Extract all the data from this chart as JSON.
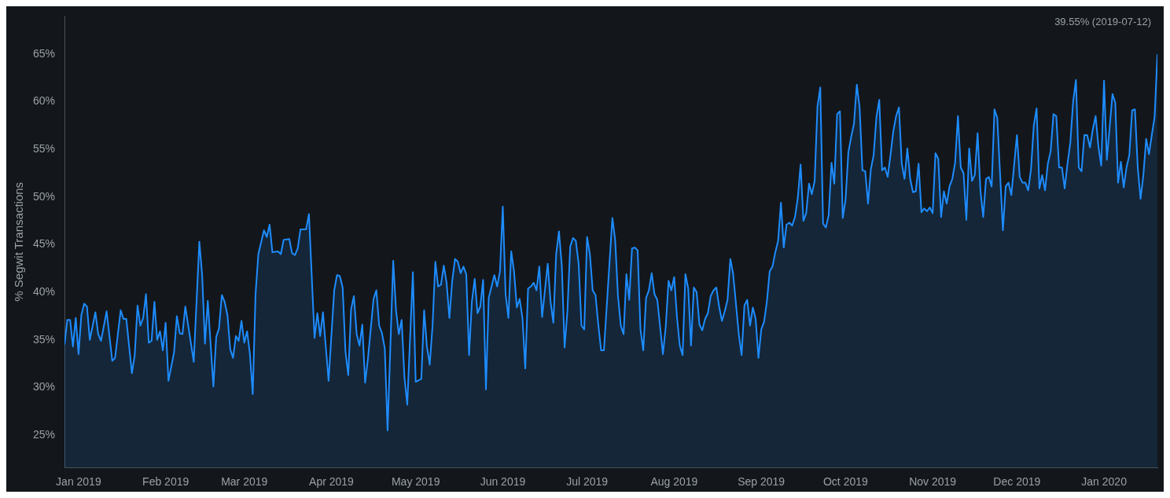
{
  "chart_data": {
    "type": "area",
    "ylabel": "% Segwit Transactions",
    "annotations": [
      "39.55% (2019-07-12)"
    ],
    "x": [
      "2018-12-27",
      "2018-12-28",
      "2018-12-29",
      "2018-12-30",
      "2018-12-31",
      "2019-01-01",
      "2019-01-02",
      "2019-01-03",
      "2019-01-04",
      "2019-01-05",
      "2019-01-07",
      "2019-01-08",
      "2019-01-09",
      "2019-01-11",
      "2019-01-13",
      "2019-01-14",
      "2019-01-16",
      "2019-01-17",
      "2019-01-18",
      "2019-01-20",
      "2019-01-21",
      "2019-01-22",
      "2019-01-23",
      "2019-01-24",
      "2019-01-25",
      "2019-01-26",
      "2019-01-27",
      "2019-01-28",
      "2019-01-29",
      "2019-01-30",
      "2019-01-31",
      "2019-02-01",
      "2019-02-02",
      "2019-02-04",
      "2019-02-05",
      "2019-02-06",
      "2019-02-07",
      "2019-02-08",
      "2019-02-11",
      "2019-02-13",
      "2019-02-14",
      "2019-02-15",
      "2019-02-16",
      "2019-02-18",
      "2019-02-19",
      "2019-02-20",
      "2019-02-21",
      "2019-02-22",
      "2019-02-23",
      "2019-02-24",
      "2019-02-25",
      "2019-02-26",
      "2019-02-27",
      "2019-02-28",
      "2019-03-01",
      "2019-03-02",
      "2019-03-03",
      "2019-03-04",
      "2019-03-05",
      "2019-03-06",
      "2019-03-08",
      "2019-03-09",
      "2019-03-10",
      "2019-03-11",
      "2019-03-13",
      "2019-03-14",
      "2019-03-15",
      "2019-03-17",
      "2019-03-18",
      "2019-03-19",
      "2019-03-20",
      "2019-03-21",
      "2019-03-23",
      "2019-03-24",
      "2019-03-26",
      "2019-03-27",
      "2019-03-28",
      "2019-03-29",
      "2019-03-31",
      "2019-04-02",
      "2019-04-03",
      "2019-04-04",
      "2019-04-05",
      "2019-04-06",
      "2019-04-07",
      "2019-04-08",
      "2019-04-09",
      "2019-04-10",
      "2019-04-11",
      "2019-04-12",
      "2019-04-13",
      "2019-04-14",
      "2019-04-16",
      "2019-04-17",
      "2019-04-18",
      "2019-04-19",
      "2019-04-20",
      "2019-04-21",
      "2019-04-23",
      "2019-04-24",
      "2019-04-25",
      "2019-04-26",
      "2019-04-27",
      "2019-04-28",
      "2019-04-30",
      "2019-05-01",
      "2019-05-03",
      "2019-05-04",
      "2019-05-05",
      "2019-05-06",
      "2019-05-07",
      "2019-05-08",
      "2019-05-09",
      "2019-05-10",
      "2019-05-11",
      "2019-05-12",
      "2019-05-13",
      "2019-05-14",
      "2019-05-15",
      "2019-05-16",
      "2019-05-17",
      "2019-05-18",
      "2019-05-19",
      "2019-05-20",
      "2019-05-21",
      "2019-05-22",
      "2019-05-23",
      "2019-05-24",
      "2019-05-25",
      "2019-05-26",
      "2019-05-27",
      "2019-05-29",
      "2019-05-30",
      "2019-05-31",
      "2019-06-01",
      "2019-06-02",
      "2019-06-03",
      "2019-06-04",
      "2019-06-05",
      "2019-06-06",
      "2019-06-07",
      "2019-06-08",
      "2019-06-09",
      "2019-06-10",
      "2019-06-11",
      "2019-06-12",
      "2019-06-13",
      "2019-06-14",
      "2019-06-15",
      "2019-06-17",
      "2019-06-18",
      "2019-06-19",
      "2019-06-20",
      "2019-06-21",
      "2019-06-22",
      "2019-06-23",
      "2019-06-24",
      "2019-06-25",
      "2019-06-26",
      "2019-06-27",
      "2019-06-28",
      "2019-06-29",
      "2019-06-30",
      "2019-07-01",
      "2019-07-02",
      "2019-07-03",
      "2019-07-04",
      "2019-07-05",
      "2019-07-06",
      "2019-07-07",
      "2019-07-10",
      "2019-07-11",
      "2019-07-12",
      "2019-07-13",
      "2019-07-14",
      "2019-07-15",
      "2019-07-16",
      "2019-07-17",
      "2019-07-18",
      "2019-07-19",
      "2019-07-20",
      "2019-07-21",
      "2019-07-22",
      "2019-07-23",
      "2019-07-24",
      "2019-07-25",
      "2019-07-26",
      "2019-07-28",
      "2019-07-29",
      "2019-07-30",
      "2019-07-31",
      "2019-08-01",
      "2019-08-02",
      "2019-08-03",
      "2019-08-04",
      "2019-08-05",
      "2019-08-06",
      "2019-08-07",
      "2019-08-08",
      "2019-08-09",
      "2019-08-10",
      "2019-08-11",
      "2019-08-12",
      "2019-08-13",
      "2019-08-14",
      "2019-08-15",
      "2019-08-16",
      "2019-08-17",
      "2019-08-18",
      "2019-08-19",
      "2019-08-20",
      "2019-08-21",
      "2019-08-22",
      "2019-08-24",
      "2019-08-25",
      "2019-08-26",
      "2019-08-27",
      "2019-08-28",
      "2019-08-29",
      "2019-08-30",
      "2019-08-31",
      "2019-09-01",
      "2019-09-02",
      "2019-09-03",
      "2019-09-04",
      "2019-09-05",
      "2019-09-06",
      "2019-09-07",
      "2019-09-08",
      "2019-09-09",
      "2019-09-10",
      "2019-09-11",
      "2019-09-12",
      "2019-09-13",
      "2019-09-14",
      "2019-09-15",
      "2019-09-16",
      "2019-09-17",
      "2019-09-18",
      "2019-09-19",
      "2019-09-20",
      "2019-09-21",
      "2019-09-22",
      "2019-09-23",
      "2019-09-24",
      "2019-09-25",
      "2019-09-26",
      "2019-09-27",
      "2019-09-28",
      "2019-09-29",
      "2019-09-30",
      "2019-10-01",
      "2019-10-02",
      "2019-10-03",
      "2019-10-04",
      "2019-10-05",
      "2019-10-06",
      "2019-10-07",
      "2019-10-08",
      "2019-10-09",
      "2019-10-10",
      "2019-10-11",
      "2019-10-12",
      "2019-10-13",
      "2019-10-14",
      "2019-10-15",
      "2019-10-16",
      "2019-10-17",
      "2019-10-18",
      "2019-10-19",
      "2019-10-20",
      "2019-10-21",
      "2019-10-22",
      "2019-10-23",
      "2019-10-24",
      "2019-10-25",
      "2019-10-26",
      "2019-10-27",
      "2019-10-28",
      "2019-10-29",
      "2019-10-30",
      "2019-10-31",
      "2019-11-01",
      "2019-11-02",
      "2019-11-03",
      "2019-11-04",
      "2019-11-05",
      "2019-11-06",
      "2019-11-07",
      "2019-11-08",
      "2019-11-09",
      "2019-11-10",
      "2019-11-11",
      "2019-11-12",
      "2019-11-13",
      "2019-11-14",
      "2019-11-15",
      "2019-11-16",
      "2019-11-17",
      "2019-11-18",
      "2019-11-19",
      "2019-11-20",
      "2019-11-21",
      "2019-11-22",
      "2019-11-23",
      "2019-11-24",
      "2019-11-26",
      "2019-11-27",
      "2019-11-28",
      "2019-11-29",
      "2019-12-01",
      "2019-12-02",
      "2019-12-03",
      "2019-12-04",
      "2019-12-05",
      "2019-12-06",
      "2019-12-07",
      "2019-12-08",
      "2019-12-09",
      "2019-12-10",
      "2019-12-11",
      "2019-12-12",
      "2019-12-13",
      "2019-12-14",
      "2019-12-15",
      "2019-12-16",
      "2019-12-17",
      "2019-12-18",
      "2019-12-19",
      "2019-12-20",
      "2019-12-21",
      "2019-12-22",
      "2019-12-23",
      "2019-12-24",
      "2019-12-25",
      "2019-12-26",
      "2019-12-27",
      "2019-12-28",
      "2019-12-29",
      "2019-12-30",
      "2019-12-31",
      "2020-01-01",
      "2020-01-02",
      "2020-01-03",
      "2020-01-04",
      "2020-01-05",
      "2020-01-06",
      "2020-01-07",
      "2020-01-08",
      "2020-01-09",
      "2020-01-10",
      "2020-01-11",
      "2020-01-12",
      "2020-01-13",
      "2020-01-14",
      "2020-01-15",
      "2020-01-16",
      "2020-01-17",
      "2020-01-18",
      "2020-01-19",
      "2020-01-20"
    ],
    "series": [
      {
        "color": "#1e8cff",
        "values": [
          34.5,
          37.1,
          37.1,
          34.3,
          37.3,
          33.5,
          37.6,
          38.8,
          38.5,
          35.0,
          37.9,
          35.6,
          34.9,
          38.0,
          32.8,
          33.1,
          38.1,
          37.2,
          37.2,
          31.5,
          33.4,
          38.6,
          36.5,
          37.3,
          39.8,
          34.7,
          34.9,
          39.0,
          35.0,
          35.9,
          33.9,
          36.8,
          30.7,
          33.7,
          37.5,
          35.7,
          35.6,
          38.5,
          32.7,
          45.3,
          41.8,
          34.6,
          39.1,
          30.1,
          35.3,
          36.2,
          39.7,
          39.0,
          37.6,
          34.0,
          33.1,
          35.4,
          34.9,
          37.0,
          34.7,
          35.9,
          33.5,
          29.3,
          39.8,
          44.0,
          46.5,
          45.8,
          47.1,
          44.2,
          44.3,
          44.0,
          45.5,
          45.6,
          44.1,
          43.9,
          44.6,
          46.6,
          46.6,
          48.2,
          35.2,
          37.8,
          35.4,
          37.9,
          30.7,
          40.2,
          41.8,
          41.7,
          40.5,
          33.8,
          31.3,
          38.2,
          39.6,
          35.6,
          34.4,
          36.6,
          30.5,
          33.0,
          39.3,
          40.2,
          36.5,
          35.7,
          34.1,
          25.5,
          43.3,
          38.1,
          35.6,
          37.1,
          31.1,
          28.2,
          42.1,
          30.6,
          30.9,
          38.1,
          34.3,
          32.4,
          36.5,
          43.2,
          40.6,
          40.8,
          42.8,
          41.0,
          37.3,
          41.2,
          43.5,
          43.2,
          42.0,
          42.7,
          41.9,
          33.4,
          39.0,
          41.4,
          37.8,
          38.5,
          41.3,
          29.8,
          39.4,
          41.8,
          40.6,
          42.2,
          49.0,
          39.8,
          37.3,
          44.3,
          42.2,
          38.4,
          39.3,
          37.3,
          32.0,
          40.4,
          40.6,
          41.0,
          40.2,
          42.7,
          37.4,
          43.0,
          39.0,
          36.8,
          44.0,
          46.4,
          42.8,
          34.2,
          38.0,
          44.8,
          45.7,
          45.4,
          43.0,
          36.5,
          36.1,
          45.8,
          44.0,
          40.2,
          39.7,
          36.6,
          33.9,
          33.9,
          47.8,
          45.5,
          39.6,
          36.5,
          35.6,
          41.9,
          39.2,
          44.6,
          44.7,
          44.4,
          36.1,
          33.9,
          39.4,
          40.2,
          42.0,
          39.8,
          39.2,
          33.5,
          36.4,
          41.2,
          40.2,
          41.6,
          37.4,
          34.4,
          33.4,
          41.9,
          40.4,
          34.4,
          40.5,
          40.0,
          36.6,
          36.0,
          37.2,
          37.8,
          39.6,
          40.2,
          40.5,
          38.5,
          37.0,
          38.0,
          39.2,
          43.5,
          41.9,
          35.6,
          33.4,
          38.6,
          39.2,
          36.5,
          38.4,
          37.2,
          33.1,
          36.1,
          36.9,
          39.0,
          42.2,
          42.7,
          44.2,
          45.4,
          49.4,
          44.7,
          47.1,
          47.3,
          47.0,
          47.9,
          49.9,
          53.4,
          47.5,
          48.3,
          51.4,
          50.3,
          51.7,
          59.5,
          61.5,
          47.2,
          46.8,
          48.1,
          53.6,
          51.4,
          58.7,
          59.0,
          47.8,
          49.7,
          54.7,
          56.3,
          57.7,
          61.8,
          59.4,
          52.8,
          52.7,
          49.3,
          52.9,
          54.4,
          58.4,
          60.2,
          52.8,
          53.1,
          52.1,
          54.4,
          56.9,
          58.5,
          59.4,
          53.5,
          51.9,
          55.1,
          51.9,
          50.5,
          50.6,
          53.5,
          48.4,
          48.8,
          48.5,
          48.9,
          48.3,
          54.6,
          54.0,
          47.9,
          50.6,
          49.3,
          51.1,
          51.9,
          53.6,
          58.5,
          53.1,
          52.5,
          47.6,
          55.1,
          51.7,
          52.3,
          56.7,
          50.7,
          47.9,
          51.9,
          52.1,
          51.1,
          59.2,
          58.3,
          46.5,
          51.1,
          51.5,
          50.2,
          56.5,
          52.1,
          51.5,
          51.5,
          50.7,
          52.9,
          57.5,
          59.3,
          50.9,
          52.3,
          50.7,
          53.5,
          54.8,
          58.7,
          58.5,
          53.1,
          53.1,
          50.9,
          53.5,
          55.7,
          60.0,
          62.3,
          53.1,
          52.7,
          56.5,
          56.5,
          55.2,
          57.1,
          58.5,
          55.3,
          53.3,
          62.2,
          53.9,
          57.3,
          60.8,
          59.9,
          51.5,
          53.7,
          51.0,
          53.1,
          54.4,
          59.1,
          59.2,
          53.1,
          49.8,
          52.3,
          56.1,
          54.5,
          56.5,
          58.4,
          65.0
        ]
      }
    ],
    "xlim": [
      "2018-12-27",
      "2020-01-20"
    ],
    "xticks": [
      {
        "value": "2019-01-01",
        "label": "Jan 2019"
      },
      {
        "value": "2019-02-01",
        "label": "Feb 2019"
      },
      {
        "value": "2019-03-01",
        "label": "Mar 2019"
      },
      {
        "value": "2019-04-01",
        "label": "Apr 2019"
      },
      {
        "value": "2019-05-01",
        "label": "May 2019"
      },
      {
        "value": "2019-06-01",
        "label": "Jun 2019"
      },
      {
        "value": "2019-07-01",
        "label": "Jul 2019"
      },
      {
        "value": "2019-08-01",
        "label": "Aug 2019"
      },
      {
        "value": "2019-09-01",
        "label": "Sep 2019"
      },
      {
        "value": "2019-10-01",
        "label": "Oct 2019"
      },
      {
        "value": "2019-11-01",
        "label": "Nov 2019"
      },
      {
        "value": "2019-12-01",
        "label": "Dec 2019"
      },
      {
        "value": "2020-01-01",
        "label": "Jan 2020"
      }
    ],
    "ylim": [
      21.6,
      69
    ],
    "yticks": [
      {
        "value": 25,
        "label": "25%"
      },
      {
        "value": 30,
        "label": "30%"
      },
      {
        "value": 35,
        "label": "35%"
      },
      {
        "value": 40,
        "label": "40%"
      },
      {
        "value": 45,
        "label": "45%"
      },
      {
        "value": 50,
        "label": "50%"
      },
      {
        "value": 55,
        "label": "55%"
      },
      {
        "value": 60,
        "label": "60%"
      },
      {
        "value": 65,
        "label": "65%"
      }
    ]
  }
}
